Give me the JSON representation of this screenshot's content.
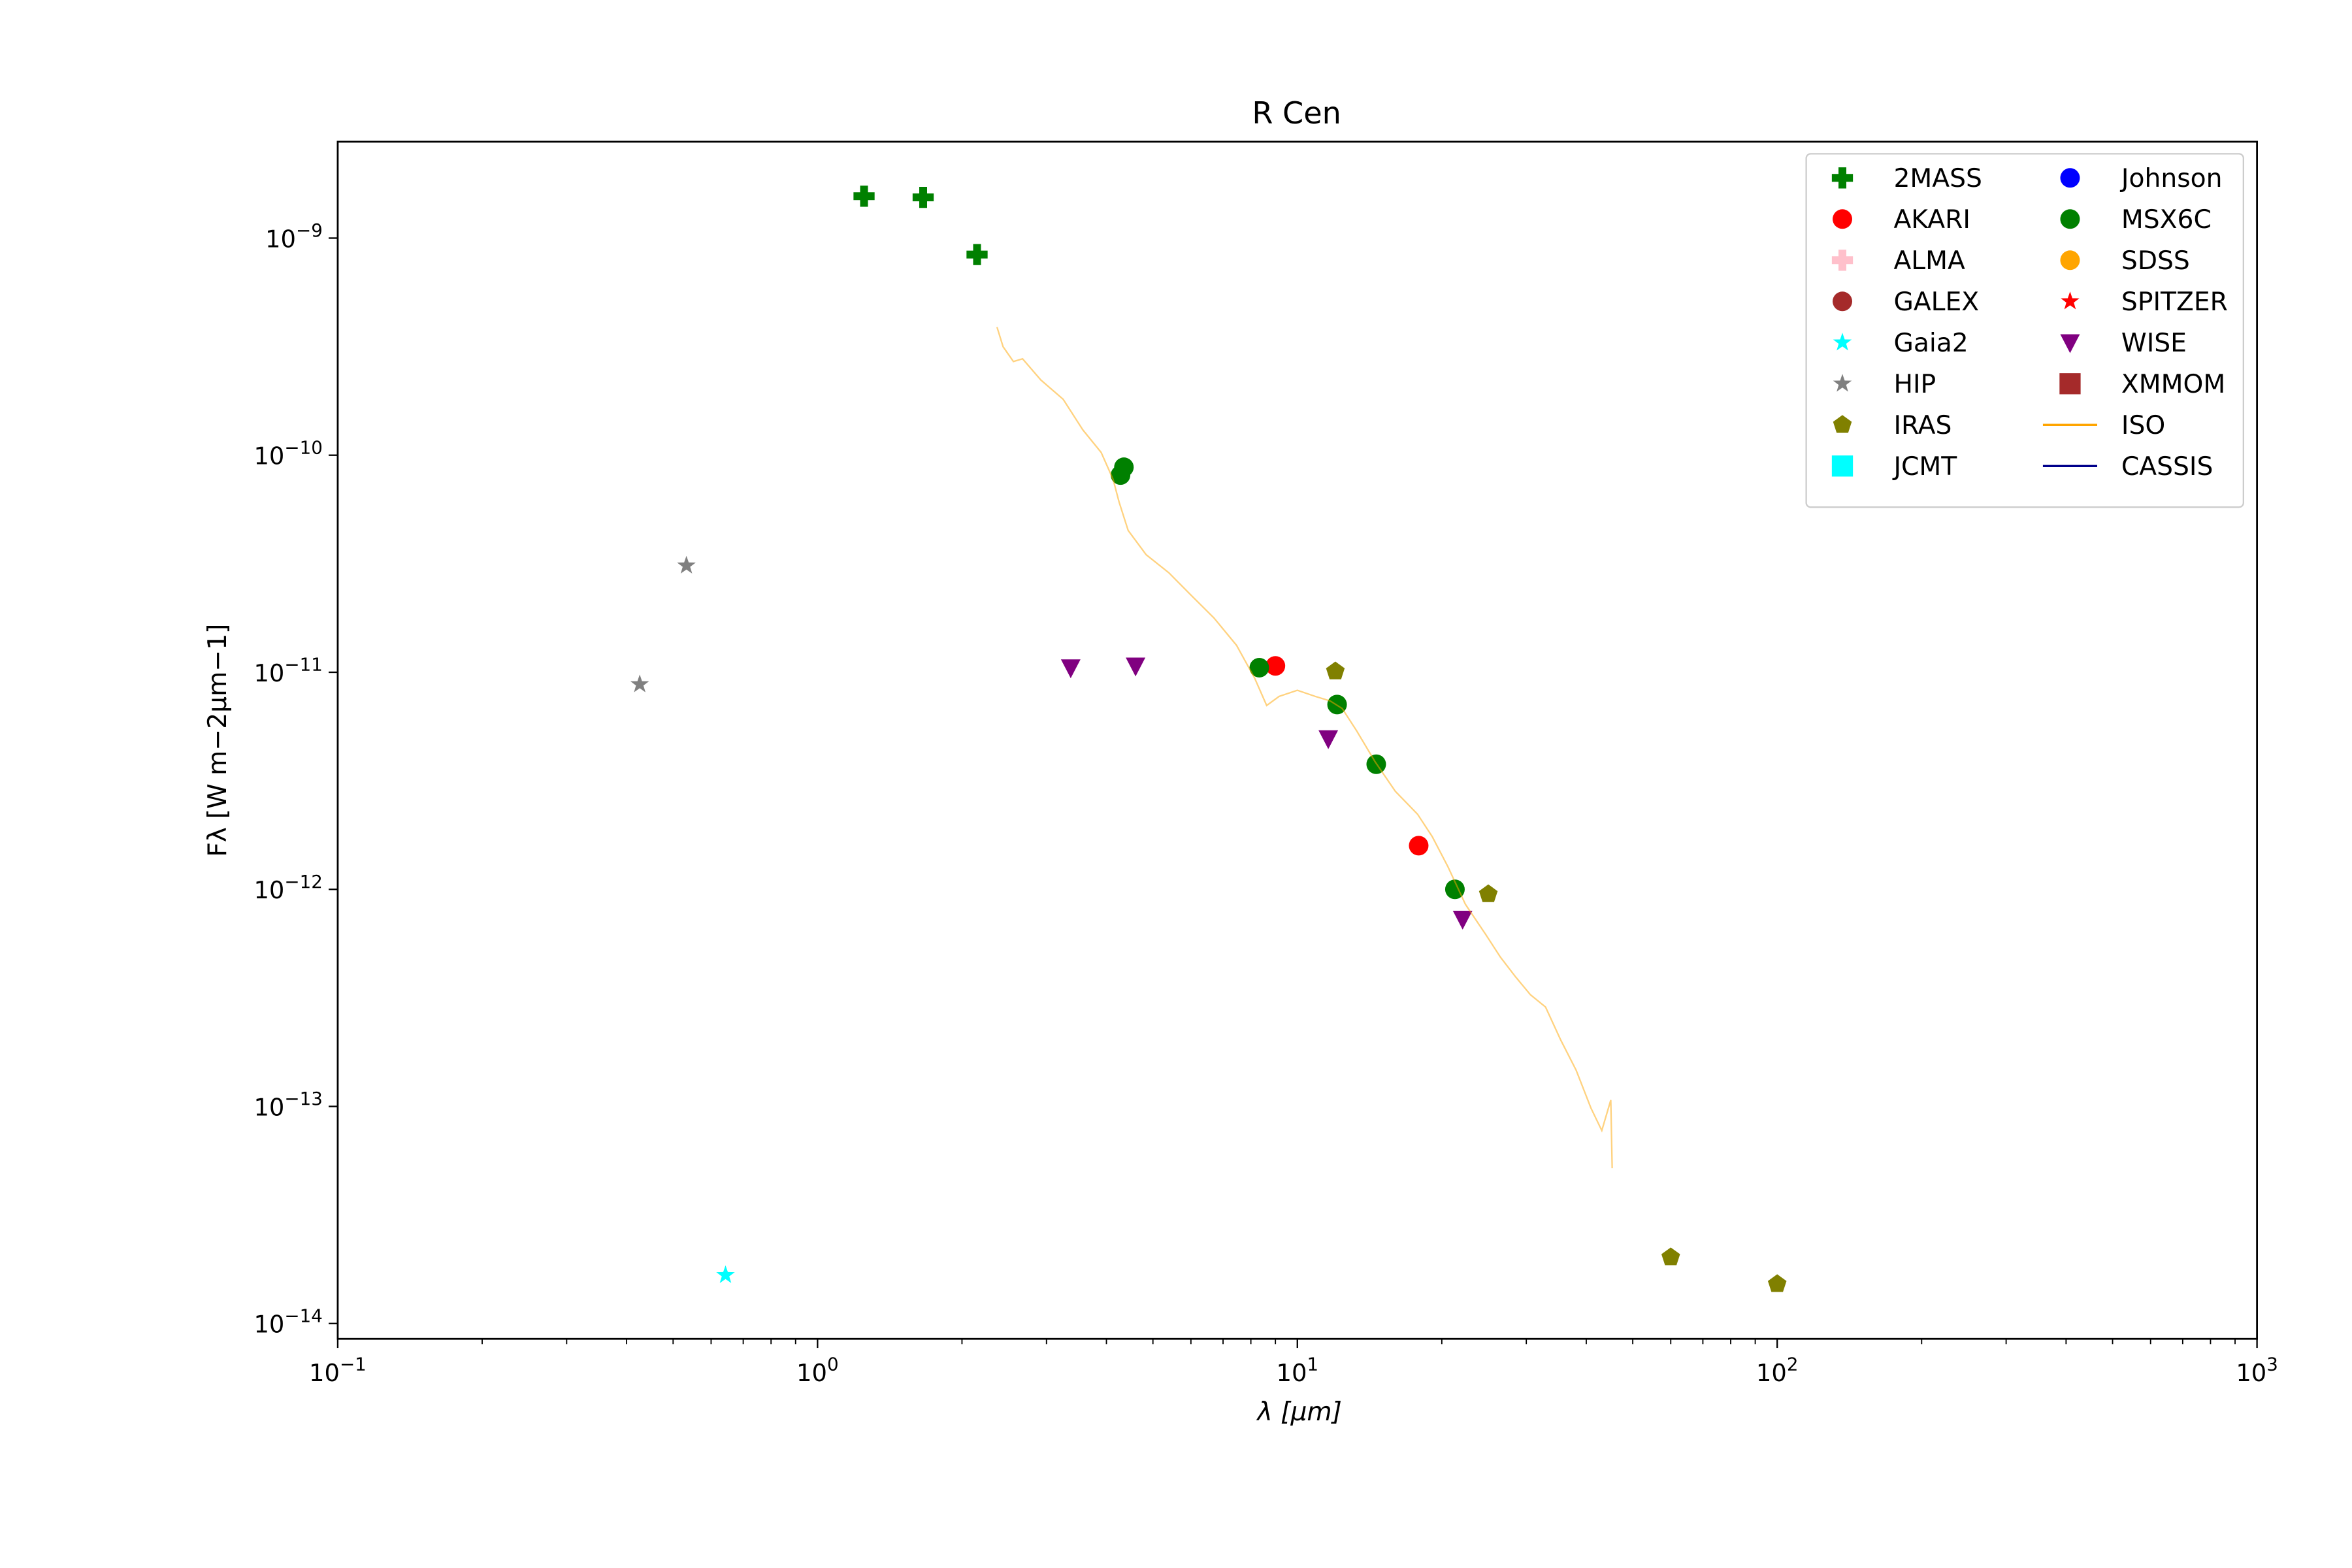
{
  "chart_data": {
    "type": "scatter",
    "title": "R Cen",
    "x_label": "λ [μm]",
    "y_label": "Fλ [W m−2μm−1]",
    "xscale": "log",
    "yscale": "log",
    "xlim": [
      0.1,
      1000
    ],
    "ylim": [
      8.5e-15,
      2.78e-09
    ],
    "xticks": [
      {
        "value": 0.1,
        "label": "10−1"
      },
      {
        "value": 1,
        "label": "100"
      },
      {
        "value": 10,
        "label": "101"
      },
      {
        "value": 100,
        "label": "102"
      },
      {
        "value": 1000,
        "label": "103"
      }
    ],
    "yticks": [
      {
        "value": 1e-14,
        "label": "10−14"
      },
      {
        "value": 1e-13,
        "label": "10−13"
      },
      {
        "value": 1e-12,
        "label": "10−12"
      },
      {
        "value": 1e-11,
        "label": "10−11"
      },
      {
        "value": 1e-10,
        "label": "10−10"
      },
      {
        "value": 1e-09,
        "label": "10−9"
      }
    ],
    "legend": "upper right",
    "legend_columns": 2,
    "series": [
      {
        "name": "2MASS",
        "color": "#008000",
        "marker": "plus",
        "x": [
          1.25,
          1.66,
          2.15
        ],
        "values": [
          1.56e-09,
          1.54e-09,
          8.4e-10
        ]
      },
      {
        "name": "AKARI",
        "color": "#ff0000",
        "marker": "circle",
        "x": [
          9.0,
          17.9
        ],
        "values": [
          1.07e-11,
          1.59e-12
        ]
      },
      {
        "name": "ALMA",
        "color": "#ffc0cb",
        "marker": "plus",
        "x": [],
        "values": []
      },
      {
        "name": "GALEX",
        "color": "#a52a2a",
        "marker": "circle",
        "x": [],
        "values": []
      },
      {
        "name": "Gaia2",
        "color": "#00ffff",
        "marker": "star",
        "x": [
          0.643
        ],
        "values": [
          1.67e-14
        ]
      },
      {
        "name": "HIP",
        "color": "#808080",
        "marker": "star",
        "x": [
          0.426,
          0.533
        ],
        "values": [
          8.8e-12,
          3.1e-11
        ]
      },
      {
        "name": "IRAS",
        "color": "#808000",
        "marker": "pentagon",
        "x": [
          12.0,
          25.0,
          60,
          100
        ],
        "values": [
          1.01e-11,
          9.5e-13,
          2.02e-14,
          1.52e-14
        ]
      },
      {
        "name": "JCMT",
        "color": "#00ffff",
        "marker": "square",
        "x": [],
        "values": []
      },
      {
        "name": "Johnson",
        "color": "#0000ff",
        "marker": "circle",
        "x": [],
        "values": []
      },
      {
        "name": "MSX6C",
        "color": "#008000",
        "marker": "circle",
        "x": [
          4.35,
          4.28,
          8.33,
          12.1,
          14.6,
          21.3
        ],
        "values": [
          8.8e-11,
          8.1e-11,
          1.05e-11,
          7.1e-12,
          3.77e-12,
          1e-12
        ]
      },
      {
        "name": "SDSS",
        "color": "#ffa500",
        "marker": "circle",
        "x": [],
        "values": []
      },
      {
        "name": "SPITZER",
        "color": "#ff0000",
        "marker": "star",
        "x": [],
        "values": []
      },
      {
        "name": "WISE",
        "color": "#800080",
        "marker": "triangle-down",
        "x": [
          3.37,
          4.6,
          11.6,
          22.1
        ],
        "values": [
          1.05e-11,
          1.07e-11,
          4.95e-12,
          7.3e-13
        ]
      },
      {
        "name": "XMMOM",
        "color": "#a52a2a",
        "marker": "square",
        "x": [],
        "values": []
      },
      {
        "name": "ISO",
        "color": "#ffa500",
        "marker": "line",
        "alpha": 0.5,
        "x": [
          2.366,
          2.436,
          2.56,
          2.675,
          2.92,
          3.25,
          3.57,
          3.9,
          4.13,
          4.25,
          4.44,
          4.84,
          5.4,
          6.01,
          6.7,
          7.47,
          8.15,
          8.63,
          9.16,
          10,
          10.9,
          11.7,
          12.4,
          13.3,
          14.5,
          16.0,
          17.8,
          19.1,
          20.6,
          22.4,
          24.7,
          26.5,
          28.5,
          30.6,
          32.9,
          35.4,
          38.1,
          40.9,
          43.1,
          45.0,
          45.3
        ],
        "values": [
          3.89e-10,
          3.16e-10,
          2.7e-10,
          2.78e-10,
          2.22e-10,
          1.81e-10,
          1.31e-10,
          1.03e-10,
          7.74e-11,
          6.09e-11,
          4.5e-11,
          3.48e-11,
          2.87e-11,
          2.26e-11,
          1.78e-11,
          1.33e-11,
          9.38e-12,
          7.03e-12,
          7.74e-12,
          8.26e-12,
          7.74e-12,
          7.38e-12,
          6.81e-12,
          5.36e-12,
          3.89e-12,
          2.83e-12,
          2.22e-12,
          1.75e-12,
          1.27e-12,
          8.53e-13,
          6.19e-13,
          4.87e-13,
          3.95e-13,
          3.27e-13,
          2.87e-13,
          2.02e-13,
          1.47e-13,
          9.84e-14,
          7.74e-14,
          1.07e-13,
          5.19e-14
        ]
      },
      {
        "name": "CASSIS",
        "color": "#00008b",
        "marker": "line",
        "x": [],
        "values": []
      }
    ]
  }
}
